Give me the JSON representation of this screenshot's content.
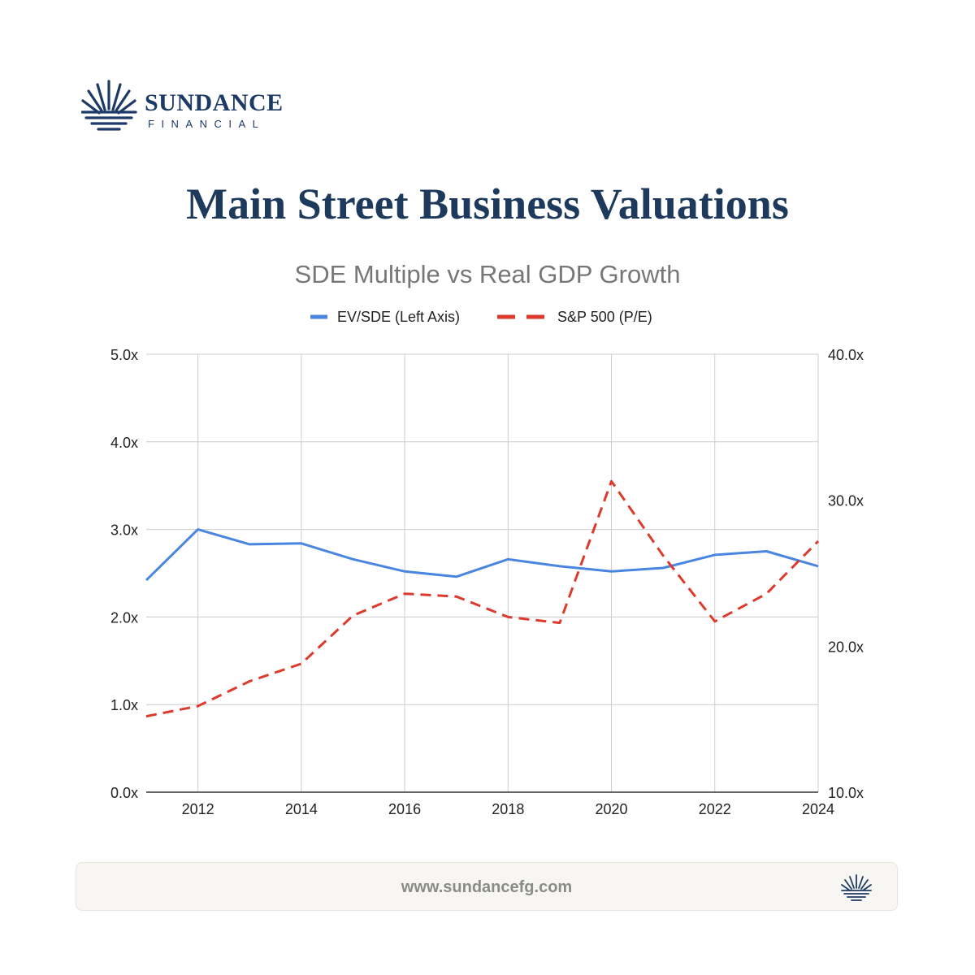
{
  "brand": {
    "name": "SUNDANCE",
    "subname": "FINANCIAL",
    "color": "#1d3a66"
  },
  "page_title": "Main Street Business Valuations",
  "footer": {
    "url": "www.sundancefg.com"
  },
  "chart_data": {
    "type": "line",
    "title": "SDE Multiple vs Real GDP Growth",
    "legend_position": "top",
    "grid": true,
    "x": [
      2011,
      2012,
      2013,
      2014,
      2015,
      2016,
      2017,
      2018,
      2019,
      2020,
      2021,
      2022,
      2023,
      2024
    ],
    "x_ticks": [
      "2012",
      "2014",
      "2016",
      "2018",
      "2020",
      "2022",
      "2024"
    ],
    "xlim": [
      2011,
      2024
    ],
    "y_left": {
      "lim": [
        0,
        5
      ],
      "ticks": [
        "0.0x",
        "1.0x",
        "2.0x",
        "3.0x",
        "4.0x",
        "5.0x"
      ]
    },
    "y_right": {
      "lim": [
        10,
        40
      ],
      "ticks": [
        "10.0x",
        "20.0x",
        "30.0x",
        "40.0x"
      ]
    },
    "series": [
      {
        "name": "EV/SDE (Left Axis)",
        "axis": "left",
        "style": "solid",
        "color": "#4a86e0",
        "values": [
          2.42,
          3.0,
          2.83,
          2.84,
          2.66,
          2.52,
          2.46,
          2.66,
          2.58,
          2.52,
          2.56,
          2.71,
          2.75,
          2.58
        ]
      },
      {
        "name": "S&P 500 (P/E)",
        "axis": "right",
        "style": "dashed",
        "color": "#dd3a2e",
        "values": [
          15.2,
          15.9,
          17.6,
          18.8,
          22.1,
          23.6,
          23.4,
          22.0,
          21.6,
          31.3,
          26.2,
          21.7,
          23.6,
          27.2
        ]
      }
    ]
  }
}
